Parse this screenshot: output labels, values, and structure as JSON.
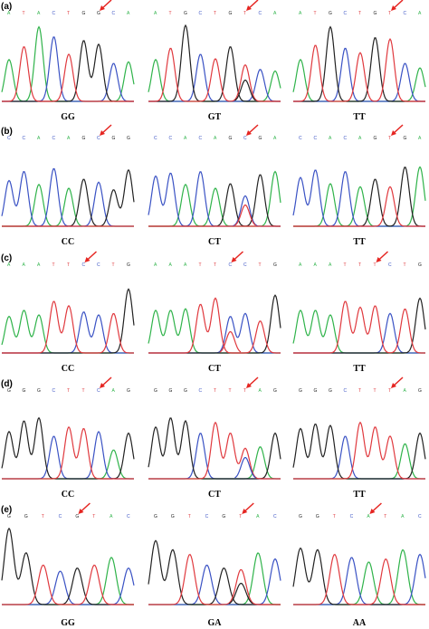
{
  "colors": {
    "A": "#2fb34a",
    "C": "#3a52c4",
    "G": "#222222",
    "T": "#e0393e",
    "arrow": "#e52521"
  },
  "panels": [
    {
      "label": "(a)",
      "cells": [
        {
          "genotype": "GG",
          "bases": "ATACTGGCA",
          "mark": 6,
          "peaks": [
            [
              "A",
              0.55
            ],
            [
              "T",
              0.72
            ],
            [
              "A",
              0.98
            ],
            [
              "C",
              0.85
            ],
            [
              "T",
              0.62
            ],
            [
              "G",
              0.8
            ],
            [
              "G",
              0.75
            ],
            [
              "C",
              0.5
            ],
            [
              "A",
              0.52
            ]
          ]
        },
        {
          "genotype": "GT",
          "bases": "ATGCTGTCA",
          "mark": 6,
          "peaks": [
            [
              "A",
              0.55
            ],
            [
              "T",
              0.7
            ],
            [
              "G",
              1.0
            ],
            [
              "C",
              0.62
            ],
            [
              "T",
              0.56
            ],
            [
              "G",
              0.72
            ],
            [
              "T",
              0.48
            ],
            [
              "C",
              0.42
            ],
            [
              "A",
              0.4
            ]
          ]
        },
        {
          "genotype": "TT",
          "bases": "ATGCTGTCA",
          "mark": 6,
          "peaks": [
            [
              "A",
              0.55
            ],
            [
              "T",
              0.74
            ],
            [
              "G",
              0.98
            ],
            [
              "C",
              0.7
            ],
            [
              "T",
              0.64
            ],
            [
              "G",
              0.84
            ],
            [
              "T",
              0.82
            ],
            [
              "C",
              0.5
            ],
            [
              "A",
              0.44
            ]
          ]
        }
      ]
    },
    {
      "label": "(b)",
      "cells": [
        {
          "genotype": "CC",
          "bases": "CCACAGCGG",
          "mark": 6,
          "peaks": [
            [
              "C",
              0.6
            ],
            [
              "C",
              0.72
            ],
            [
              "A",
              0.55
            ],
            [
              "C",
              0.76
            ],
            [
              "A",
              0.5
            ],
            [
              "G",
              0.62
            ],
            [
              "C",
              0.58
            ],
            [
              "G",
              0.48
            ],
            [
              "G",
              0.74
            ]
          ]
        },
        {
          "genotype": "CT",
          "bases": "CCACAGCGA",
          "mark": 6,
          "peaks": [
            [
              "C",
              0.66
            ],
            [
              "C",
              0.7
            ],
            [
              "A",
              0.55
            ],
            [
              "C",
              0.72
            ],
            [
              "A",
              0.5
            ],
            [
              "G",
              0.56
            ],
            [
              "C",
              0.4
            ],
            [
              "G",
              0.68
            ],
            [
              "A",
              0.72
            ]
          ]
        },
        {
          "genotype": "TT",
          "bases": "CCACAGTGA",
          "mark": 6,
          "peaks": [
            [
              "C",
              0.64
            ],
            [
              "C",
              0.74
            ],
            [
              "A",
              0.56
            ],
            [
              "C",
              0.72
            ],
            [
              "A",
              0.52
            ],
            [
              "G",
              0.62
            ],
            [
              "T",
              0.52
            ],
            [
              "G",
              0.78
            ],
            [
              "A",
              0.78
            ]
          ]
        }
      ]
    },
    {
      "label": "(c)",
      "cells": [
        {
          "genotype": "CC",
          "bases": "AAATTCCTG",
          "mark": 5,
          "peaks": [
            [
              "A",
              0.48
            ],
            [
              "A",
              0.56
            ],
            [
              "A",
              0.5
            ],
            [
              "T",
              0.68
            ],
            [
              "T",
              0.62
            ],
            [
              "C",
              0.54
            ],
            [
              "C",
              0.5
            ],
            [
              "T",
              0.52
            ],
            [
              "G",
              0.84
            ]
          ]
        },
        {
          "genotype": "CT",
          "bases": "AAATTCCTG",
          "mark": 5,
          "peaks": [
            [
              "A",
              0.56
            ],
            [
              "A",
              0.56
            ],
            [
              "A",
              0.58
            ],
            [
              "T",
              0.64
            ],
            [
              "T",
              0.72
            ],
            [
              "C",
              0.48
            ],
            [
              "C",
              0.52
            ],
            [
              "T",
              0.42
            ],
            [
              "G",
              0.76
            ]
          ]
        },
        {
          "genotype": "TT",
          "bases": "AAATTTCTG",
          "mark": 5,
          "peaks": [
            [
              "A",
              0.56
            ],
            [
              "A",
              0.56
            ],
            [
              "A",
              0.5
            ],
            [
              "T",
              0.68
            ],
            [
              "T",
              0.6
            ],
            [
              "T",
              0.62
            ],
            [
              "C",
              0.52
            ],
            [
              "T",
              0.58
            ],
            [
              "G",
              0.72
            ]
          ]
        }
      ]
    },
    {
      "label": "(d)",
      "cells": [
        {
          "genotype": "CC",
          "bases": "GGGCTTCAG",
          "mark": 6,
          "peaks": [
            [
              "G",
              0.62
            ],
            [
              "G",
              0.76
            ],
            [
              "G",
              0.8
            ],
            [
              "C",
              0.56
            ],
            [
              "T",
              0.68
            ],
            [
              "T",
              0.66
            ],
            [
              "C",
              0.62
            ],
            [
              "A",
              0.38
            ],
            [
              "G",
              0.6
            ]
          ]
        },
        {
          "genotype": "CT",
          "bases": "GGGCTTTAG",
          "mark": 6,
          "peaks": [
            [
              "G",
              0.68
            ],
            [
              "G",
              0.8
            ],
            [
              "G",
              0.76
            ],
            [
              "C",
              0.6
            ],
            [
              "T",
              0.74
            ],
            [
              "T",
              0.6
            ],
            [
              "T",
              0.4
            ],
            [
              "A",
              0.42
            ],
            [
              "G",
              0.6
            ]
          ]
        },
        {
          "genotype": "TT",
          "bases": "GGGCTTTAG",
          "mark": 6,
          "peaks": [
            [
              "G",
              0.66
            ],
            [
              "G",
              0.72
            ],
            [
              "G",
              0.7
            ],
            [
              "C",
              0.56
            ],
            [
              "T",
              0.74
            ],
            [
              "T",
              0.68
            ],
            [
              "T",
              0.56
            ],
            [
              "A",
              0.46
            ],
            [
              "G",
              0.6
            ]
          ]
        }
      ]
    },
    {
      "label": "(e)",
      "cells": [
        {
          "genotype": "GG",
          "bases": "GGTCGTAC",
          "mark": 4,
          "peaks": [
            [
              "G",
              1.0
            ],
            [
              "G",
              0.68
            ],
            [
              "T",
              0.52
            ],
            [
              "C",
              0.44
            ],
            [
              "G",
              0.48
            ],
            [
              "T",
              0.52
            ],
            [
              "A",
              0.62
            ],
            [
              "C",
              0.48
            ]
          ]
        },
        {
          "genotype": "GA",
          "bases": "GGTCGTAC",
          "mark": 5,
          "peaks": [
            [
              "G",
              0.84
            ],
            [
              "G",
              0.72
            ],
            [
              "T",
              0.66
            ],
            [
              "C",
              0.52
            ],
            [
              "G",
              0.48
            ],
            [
              "T",
              0.46
            ],
            [
              "A",
              0.68
            ],
            [
              "C",
              0.6
            ]
          ]
        },
        {
          "genotype": "AA",
          "bases": "GGTCATAC",
          "mark": 4,
          "peaks": [
            [
              "G",
              0.74
            ],
            [
              "G",
              0.72
            ],
            [
              "T",
              0.66
            ],
            [
              "C",
              0.62
            ],
            [
              "A",
              0.56
            ],
            [
              "T",
              0.6
            ],
            [
              "A",
              0.72
            ],
            [
              "C",
              0.66
            ]
          ]
        }
      ]
    }
  ]
}
